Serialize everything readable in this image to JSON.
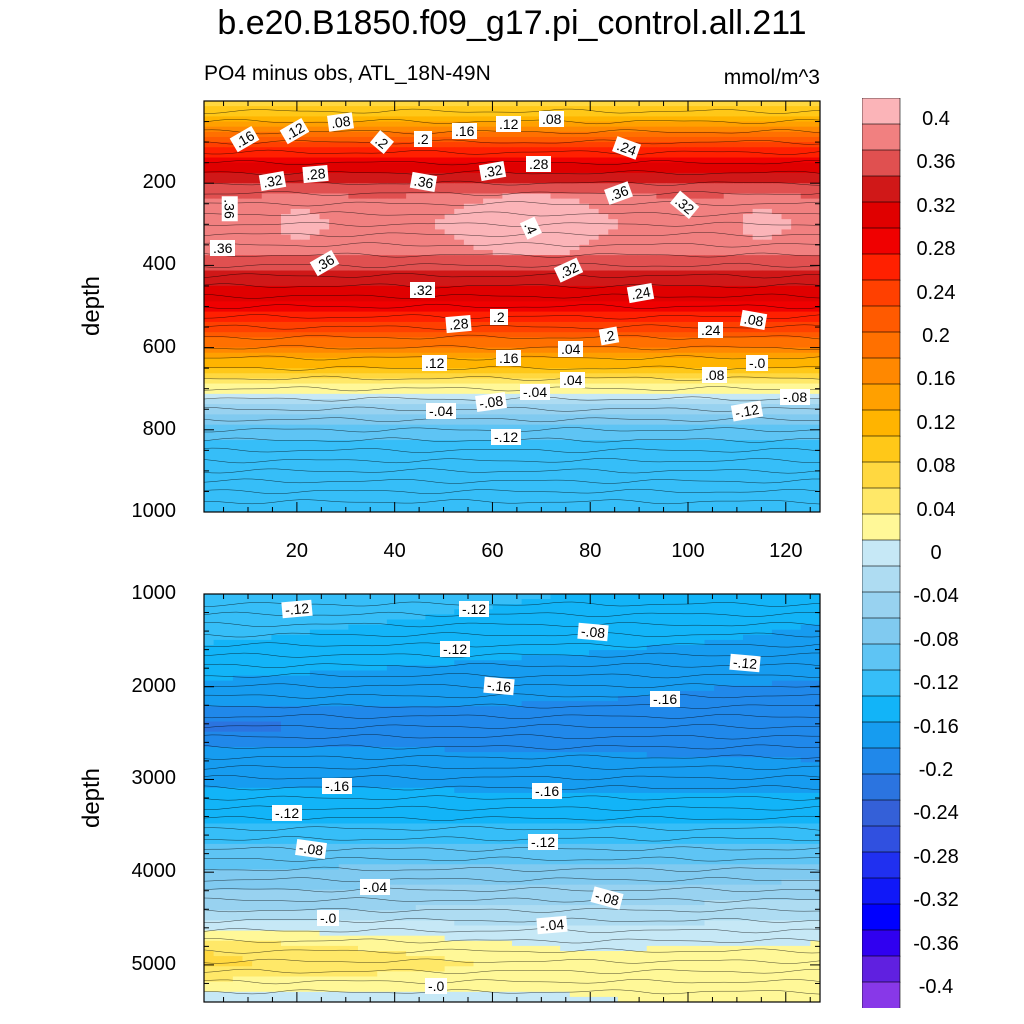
{
  "title": "b.e20.B1850.f09_g17.pi_control.all.211",
  "subtitle": "PO4 minus obs, ATL_18N-49N",
  "units": "mmol/m^3",
  "chart_data": [
    {
      "type": "heatmap",
      "ylabel": "depth",
      "x_ticks": [
        "20",
        "40",
        "60",
        "80",
        "100",
        "120"
      ],
      "y_ticks": [
        "200",
        "400",
        "600",
        "800",
        "1000"
      ],
      "xlim": [
        1,
        127
      ],
      "ylim": [
        0,
        1000
      ],
      "profile_depth": [
        0,
        50,
        100,
        150,
        200,
        250,
        300,
        350,
        400,
        450,
        500,
        550,
        600,
        650,
        700,
        750,
        800,
        850,
        900,
        1000
      ],
      "profile_value": [
        0.06,
        0.12,
        0.22,
        0.3,
        0.35,
        0.38,
        0.39,
        0.38,
        0.36,
        0.32,
        0.29,
        0.24,
        0.17,
        0.09,
        0.01,
        -0.06,
        -0.1,
        -0.13,
        -0.14,
        -0.14
      ],
      "contour_labels": [
        ".16",
        ".12",
        ".08",
        ".2",
        ".2",
        ".16",
        ".12",
        ".08",
        ".24",
        ".32",
        ".28",
        ".36",
        ".32",
        ".28",
        ".36",
        ".36",
        ".4",
        ".32",
        ".36",
        ".36",
        ".32",
        ".32",
        ".24",
        ".28",
        ".2",
        ".2",
        ".24",
        ".08",
        ".12",
        ".16",
        ".04",
        ".04",
        ".08",
        "-.0",
        "-.04",
        "-.08",
        "-.04",
        "-.08",
        "-.12",
        "-.12"
      ]
    },
    {
      "type": "heatmap",
      "ylabel": "depth",
      "y_ticks": [
        "1000",
        "2000",
        "3000",
        "4000",
        "5000"
      ],
      "ylim": [
        1000,
        5400
      ],
      "profile_depth": [
        1000,
        1500,
        2000,
        2500,
        3000,
        3500,
        4000,
        4500,
        5000,
        5400
      ],
      "profile_value": [
        -0.12,
        -0.14,
        -0.17,
        -0.19,
        -0.17,
        -0.14,
        -0.09,
        -0.04,
        0.0,
        -0.02
      ],
      "contour_labels": [
        "-.12",
        "-.12",
        "-.08",
        "-.12",
        "-.12",
        "-.16",
        "-.16",
        "-.16",
        "-.16",
        "-.12",
        "-.12",
        "-.08",
        "-.04",
        "-.08",
        "-.0",
        "-.04",
        "-.0"
      ]
    }
  ],
  "colorbar": {
    "labels": [
      "0.4",
      "0.36",
      "0.32",
      "0.28",
      "0.24",
      "0.2",
      "0.16",
      "0.12",
      "0.08",
      "0.04",
      "0",
      "-0.04",
      "-0.08",
      "-0.12",
      "-0.16",
      "-0.2",
      "-0.24",
      "-0.28",
      "-0.32",
      "-0.36",
      "-0.4"
    ],
    "colors": [
      "#fbb4b8",
      "#f18080",
      "#e05050",
      "#d01818",
      "#e00000",
      "#f00000",
      "#ff2000",
      "#ff4000",
      "#ff5a00",
      "#ff7000",
      "#ff8800",
      "#ffa000",
      "#ffb400",
      "#ffc818",
      "#ffd840",
      "#ffe868",
      "#fff898",
      "#c6e8f6",
      "#aedcf2",
      "#98d2f0",
      "#80caf0",
      "#5ec4f4",
      "#36bef8",
      "#12b4f8",
      "#169cf0",
      "#2088ea",
      "#2b74e0",
      "#3460d8",
      "#3050e0",
      "#2030f0",
      "#1018f8",
      "#0000ff",
      "#3000f0",
      "#6020e0",
      "#8838e8"
    ]
  }
}
